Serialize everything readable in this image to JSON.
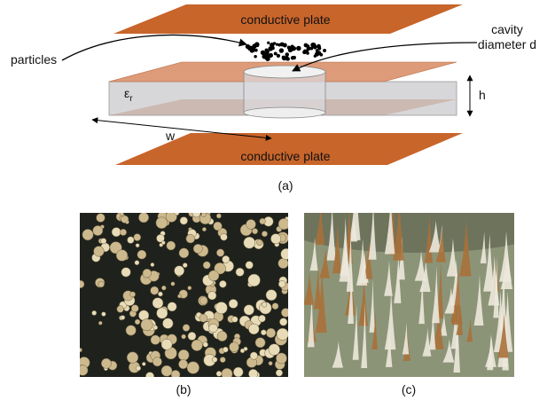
{
  "figure_a": {
    "top_plate": "conductive plate",
    "particles": "particles",
    "cavity": [
      "cavity",
      "diameter d"
    ],
    "permittivity": {
      "symbol": "ε",
      "subscript": "r"
    },
    "height": "h",
    "width": "w",
    "bottom_plate": "conductive plate",
    "caption": "(a)"
  },
  "figure_b": {
    "caption": "(b)"
  },
  "figure_c": {
    "caption": "(c)"
  }
}
